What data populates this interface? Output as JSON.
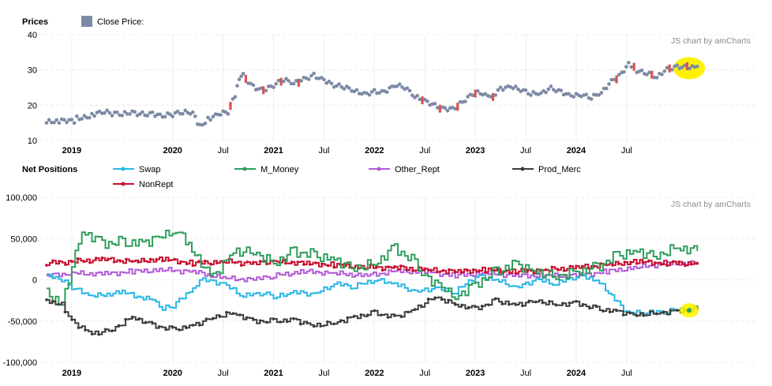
{
  "chart_data": [
    {
      "type": "scatter",
      "legend_title": "Prices",
      "series": [
        {
          "name": "Close Price:",
          "color": "#7d8aa5",
          "up_color": "#d9534f"
        }
      ],
      "y_ticks": [
        "40",
        "30",
        "20",
        "10"
      ],
      "ylim": [
        10,
        40
      ],
      "x_ticks": [
        {
          "label": "2019",
          "bold": true,
          "t": 2019.0
        },
        {
          "label": "2020",
          "bold": true,
          "t": 2020.0
        },
        {
          "label": "Jul",
          "bold": false,
          "t": 2020.5
        },
        {
          "label": "2021",
          "bold": true,
          "t": 2021.0
        },
        {
          "label": "Jul",
          "bold": false,
          "t": 2021.5
        },
        {
          "label": "2022",
          "bold": true,
          "t": 2022.0
        },
        {
          "label": "Jul",
          "bold": false,
          "t": 2022.5
        },
        {
          "label": "2023",
          "bold": true,
          "t": 2023.0
        },
        {
          "label": "Jul",
          "bold": false,
          "t": 2023.5
        },
        {
          "label": "2024",
          "bold": true,
          "t": 2024.0
        },
        {
          "label": "Jul",
          "bold": false,
          "t": 2024.5
        }
      ],
      "xlim": [
        2018.68,
        2025.8
      ],
      "credit": "JS chart by amCharts",
      "points": [
        [
          2018.75,
          15
        ],
        [
          2018.9,
          15.2
        ],
        [
          2019.05,
          16
        ],
        [
          2019.2,
          17.5
        ],
        [
          2019.3,
          18.5
        ],
        [
          2019.4,
          18
        ],
        [
          2019.5,
          17.3
        ],
        [
          2019.6,
          17.6
        ],
        [
          2019.7,
          17.1
        ],
        [
          2019.8,
          17.7
        ],
        [
          2019.9,
          17.3
        ],
        [
          2020.0,
          17.8
        ],
        [
          2020.1,
          18
        ],
        [
          2020.2,
          17.5
        ],
        [
          2020.27,
          13.5
        ],
        [
          2020.35,
          16
        ],
        [
          2020.45,
          17.8
        ],
        [
          2020.55,
          18.5
        ],
        [
          2020.62,
          23
        ],
        [
          2020.66,
          27
        ],
        [
          2020.7,
          28
        ],
        [
          2020.8,
          25
        ],
        [
          2020.9,
          24.5
        ],
        [
          2021.0,
          26
        ],
        [
          2021.1,
          27.5
        ],
        [
          2021.2,
          26
        ],
        [
          2021.3,
          27
        ],
        [
          2021.4,
          28.2
        ],
        [
          2021.5,
          27.3
        ],
        [
          2021.6,
          26
        ],
        [
          2021.7,
          25.5
        ],
        [
          2021.8,
          24
        ],
        [
          2021.9,
          22.8
        ],
        [
          2022.0,
          23.5
        ],
        [
          2022.1,
          23.8
        ],
        [
          2022.2,
          26
        ],
        [
          2022.3,
          25.5
        ],
        [
          2022.4,
          22.5
        ],
        [
          2022.5,
          21
        ],
        [
          2022.6,
          19.5
        ],
        [
          2022.7,
          18.8
        ],
        [
          2022.8,
          19.5
        ],
        [
          2022.9,
          22
        ],
        [
          2023.0,
          23.8
        ],
        [
          2023.1,
          22.8
        ],
        [
          2023.15,
          21.5
        ],
        [
          2023.25,
          24.5
        ],
        [
          2023.35,
          25.5
        ],
        [
          2023.45,
          24.8
        ],
        [
          2023.55,
          23.5
        ],
        [
          2023.65,
          23.2
        ],
        [
          2023.75,
          24.5
        ],
        [
          2023.85,
          23.5
        ],
        [
          2023.95,
          22.8
        ],
        [
          2024.05,
          23.3
        ],
        [
          2024.15,
          22.5
        ],
        [
          2024.25,
          23.5
        ],
        [
          2024.35,
          26.5
        ],
        [
          2024.45,
          28.5
        ],
        [
          2024.52,
          32
        ],
        [
          2024.6,
          30
        ],
        [
          2024.7,
          29.5
        ],
        [
          2024.8,
          28
        ],
        [
          2024.9,
          30
        ],
        [
          2025.0,
          30.5
        ],
        [
          2025.1,
          30.8
        ],
        [
          2025.2,
          31
        ]
      ]
    },
    {
      "type": "line",
      "legend_title": "Net Positions",
      "series": [
        {
          "name": "Swap",
          "color": "#29b6e6",
          "x": [
            2018.75,
            2018.9,
            2019.0,
            2019.2,
            2019.5,
            2019.8,
            2019.9,
            2020.0,
            2020.2,
            2020.3,
            2020.5,
            2020.7,
            2020.9,
            2021.0,
            2021.2,
            2021.4,
            2021.6,
            2021.8,
            2022.0,
            2022.2,
            2022.4,
            2022.6,
            2022.8,
            2023.0,
            2023.2,
            2023.4,
            2023.6,
            2023.8,
            2024.0,
            2024.2,
            2024.35,
            2024.5,
            2024.7,
            2024.9,
            2025.1,
            2025.2
          ],
          "values": [
            5000,
            0,
            -10000,
            -20000,
            -15000,
            -25000,
            -35000,
            -32000,
            -10000,
            0,
            -5000,
            -20000,
            -15000,
            -22000,
            -15000,
            -18000,
            -5000,
            -8000,
            0,
            -5000,
            -15000,
            -10000,
            -15000,
            5000,
            0,
            -10000,
            0,
            -5000,
            5000,
            0,
            -20000,
            -40000,
            -40000,
            -38000,
            -35000,
            -35000
          ]
        },
        {
          "name": "M_Money",
          "color": "#2e9e5b",
          "x": [
            2018.75,
            2018.9,
            2019.0,
            2019.1,
            2019.3,
            2019.5,
            2019.7,
            2019.9,
            2020.0,
            2020.1,
            2020.25,
            2020.4,
            2020.6,
            2020.8,
            2021.0,
            2021.2,
            2021.4,
            2021.6,
            2021.8,
            2022.0,
            2022.2,
            2022.4,
            2022.5,
            2022.7,
            2022.8,
            2023.0,
            2023.2,
            2023.4,
            2023.6,
            2023.8,
            2024.0,
            2024.2,
            2024.4,
            2024.6,
            2024.8,
            2025.0,
            2025.2
          ],
          "values": [
            -15000,
            -30000,
            20000,
            60000,
            45000,
            45000,
            45000,
            55000,
            60000,
            55000,
            25000,
            5000,
            35000,
            35000,
            20000,
            35000,
            30000,
            25000,
            15000,
            20000,
            40000,
            20000,
            5000,
            -10000,
            -20000,
            -5000,
            10000,
            20000,
            10000,
            5000,
            10000,
            15000,
            30000,
            35000,
            30000,
            40000,
            35000
          ]
        },
        {
          "name": "Other_Rept",
          "color": "#b35ad6",
          "x": [
            2018.75,
            2019.0,
            2019.3,
            2019.6,
            2019.9,
            2020.2,
            2020.5,
            2020.8,
            2021.0,
            2021.3,
            2021.6,
            2021.9,
            2022.2,
            2022.5,
            2022.8,
            2023.1,
            2023.4,
            2023.7,
            2024.0,
            2024.3,
            2024.6,
            2024.9,
            2025.2
          ],
          "values": [
            5000,
            8000,
            7000,
            10000,
            12000,
            10000,
            2000,
            0,
            5000,
            10000,
            8000,
            5000,
            10000,
            10000,
            5000,
            8000,
            5000,
            5000,
            5000,
            10000,
            15000,
            20000,
            20000
          ]
        },
        {
          "name": "Prod_Merc",
          "color": "#3d3d3d",
          "x": [
            2018.75,
            2018.9,
            2019.0,
            2019.2,
            2019.4,
            2019.6,
            2019.8,
            2020.0,
            2020.2,
            2020.4,
            2020.6,
            2020.8,
            2021.0,
            2021.2,
            2021.4,
            2021.6,
            2021.8,
            2022.0,
            2022.2,
            2022.4,
            2022.6,
            2022.8,
            2023.0,
            2023.2,
            2023.4,
            2023.6,
            2023.8,
            2024.0,
            2024.2,
            2024.4,
            2024.6,
            2024.8,
            2025.0,
            2025.2
          ],
          "values": [
            -25000,
            -30000,
            -50000,
            -65000,
            -60000,
            -45000,
            -55000,
            -60000,
            -55000,
            -45000,
            -40000,
            -50000,
            -50000,
            -48000,
            -55000,
            -52000,
            -45000,
            -40000,
            -45000,
            -35000,
            -20000,
            -30000,
            -35000,
            -25000,
            -30000,
            -25000,
            -30000,
            -28000,
            -35000,
            -38000,
            -42000,
            -40000,
            -38000,
            -35000
          ]
        },
        {
          "name": "NonRept",
          "color": "#c8102e",
          "x": [
            2018.75,
            2019.0,
            2019.3,
            2019.6,
            2019.9,
            2020.2,
            2020.5,
            2020.8,
            2021.0,
            2021.3,
            2021.6,
            2021.9,
            2022.2,
            2022.5,
            2022.8,
            2023.1,
            2023.4,
            2023.7,
            2024.0,
            2024.3,
            2024.6,
            2024.9,
            2025.2
          ],
          "values": [
            20000,
            22000,
            25000,
            22000,
            25000,
            20000,
            22000,
            20000,
            22000,
            20000,
            18000,
            15000,
            15000,
            12000,
            10000,
            12000,
            10000,
            12000,
            15000,
            18000,
            22000,
            20000,
            20000
          ]
        }
      ],
      "y_ticks": [
        "100,000",
        "50,000",
        "0",
        "-50,000",
        "-100,000"
      ],
      "ylim": [
        -100000,
        100000
      ],
      "x_ticks": [
        {
          "label": "2019",
          "bold": true,
          "t": 2019.0
        },
        {
          "label": "2020",
          "bold": true,
          "t": 2020.0
        },
        {
          "label": "Jul",
          "bold": false,
          "t": 2020.5
        },
        {
          "label": "2021",
          "bold": true,
          "t": 2021.0
        },
        {
          "label": "Jul",
          "bold": false,
          "t": 2021.5
        },
        {
          "label": "2022",
          "bold": true,
          "t": 2022.0
        },
        {
          "label": "Jul",
          "bold": false,
          "t": 2022.5
        },
        {
          "label": "2023",
          "bold": true,
          "t": 2023.0
        },
        {
          "label": "Jul",
          "bold": false,
          "t": 2023.5
        },
        {
          "label": "2024",
          "bold": true,
          "t": 2024.0
        },
        {
          "label": "Jul",
          "bold": false,
          "t": 2024.5
        }
      ],
      "xlim": [
        2018.68,
        2025.8
      ],
      "credit": "JS chart by amCharts"
    }
  ],
  "colors": {
    "grid": "#ececec",
    "highlight": "#fff200"
  }
}
